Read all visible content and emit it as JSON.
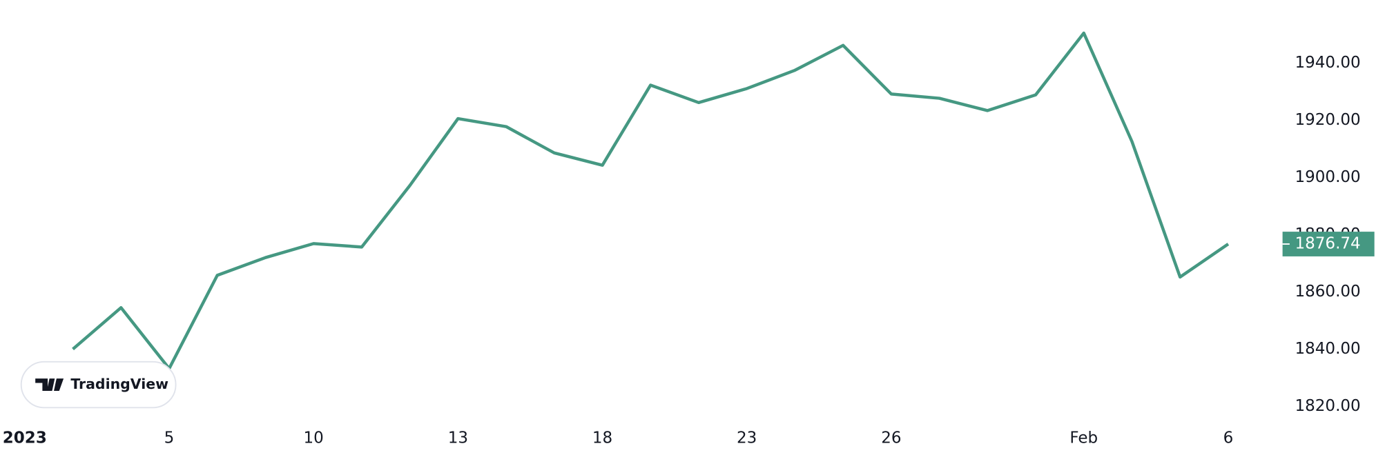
{
  "chart_data": {
    "type": "line",
    "logo_text": "TradingView",
    "categories": [
      "2023",
      null,
      null,
      "5",
      null,
      null,
      "10",
      null,
      null,
      "13",
      null,
      null,
      "18",
      null,
      null,
      "23",
      null,
      null,
      "26",
      null,
      null,
      null,
      "Feb",
      null,
      null,
      "6"
    ],
    "series": [
      {
        "color": "#459882",
        "values": [
          null,
          1840,
          1854.5,
          1833.2,
          1865.8,
          1872.0,
          1876.9,
          1875.7,
          1897.2,
          1920.6,
          1917.8,
          1908.6,
          1904.3,
          1932.3,
          1926.2,
          1931.1,
          1937.5,
          1946.2,
          1929.2,
          1927.7,
          1923.4,
          1928.9,
          1950.5,
          1912.6,
          1865.2,
          1876.74
        ]
      }
    ],
    "last_price": 1876.74,
    "ylim": [
      1814,
      1962
    ],
    "yticks": [
      {
        "value": 1820,
        "label": "1820.00"
      },
      {
        "value": 1840,
        "label": "1840.00"
      },
      {
        "value": 1860,
        "label": "1860.00"
      },
      {
        "value": 1880,
        "label": "1880.00"
      },
      {
        "value": 1900,
        "label": "1900.00"
      },
      {
        "value": 1920,
        "label": "1920.00"
      },
      {
        "value": 1940,
        "label": "1940.00"
      }
    ]
  }
}
